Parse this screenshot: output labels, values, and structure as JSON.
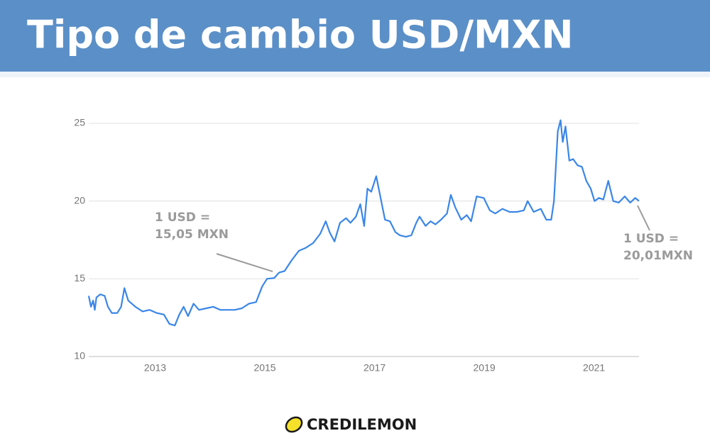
{
  "chart_data": {
    "type": "line",
    "title": "Tipo de cambio USD/MXN",
    "x": [
      2011.79,
      2011.83,
      2011.87,
      2011.9,
      2011.93,
      2012.0,
      2012.08,
      2012.14,
      2012.21,
      2012.31,
      2012.38,
      2012.44,
      2012.51,
      2012.64,
      2012.77,
      2012.9,
      2013.03,
      2013.16,
      2013.26,
      2013.36,
      2013.44,
      2013.52,
      2013.6,
      2013.7,
      2013.8,
      2013.93,
      2014.06,
      2014.19,
      2014.32,
      2014.45,
      2014.58,
      2014.71,
      2014.84,
      2014.95,
      2015.04,
      2015.17,
      2015.26,
      2015.36,
      2015.49,
      2015.62,
      2015.75,
      2015.88,
      2016.01,
      2016.11,
      2016.18,
      2016.27,
      2016.37,
      2016.48,
      2016.56,
      2016.66,
      2016.74,
      2016.81,
      2016.87,
      2016.94,
      2017.03,
      2017.11,
      2017.19,
      2017.28,
      2017.38,
      2017.46,
      2017.57,
      2017.67,
      2017.76,
      2017.82,
      2017.93,
      2018.02,
      2018.11,
      2018.21,
      2018.32,
      2018.39,
      2018.47,
      2018.58,
      2018.68,
      2018.76,
      2018.86,
      2018.99,
      2019.1,
      2019.2,
      2019.33,
      2019.46,
      2019.59,
      2019.72,
      2019.79,
      2019.9,
      2020.03,
      2020.13,
      2020.22,
      2020.27,
      2020.34,
      2020.39,
      2020.43,
      2020.48,
      2020.55,
      2020.62,
      2020.7,
      2020.78,
      2020.86,
      2020.94,
      2021.01,
      2021.09,
      2021.17,
      2021.26,
      2021.35,
      2021.45,
      2021.56,
      2021.66,
      2021.75,
      2021.82
    ],
    "values": [
      13.9,
      13.2,
      13.6,
      13.0,
      13.8,
      14.0,
      13.9,
      13.2,
      12.8,
      12.8,
      13.2,
      14.4,
      13.6,
      13.2,
      12.9,
      13.0,
      12.8,
      12.7,
      12.1,
      12.0,
      12.7,
      13.2,
      12.6,
      13.4,
      13.0,
      13.1,
      13.2,
      13.0,
      13.0,
      13.0,
      13.1,
      13.4,
      13.5,
      14.5,
      15.0,
      15.05,
      15.4,
      15.5,
      16.2,
      16.8,
      17.0,
      17.3,
      17.9,
      18.7,
      18.0,
      17.4,
      18.6,
      18.9,
      18.6,
      19.0,
      19.8,
      18.4,
      20.8,
      20.6,
      21.6,
      20.2,
      18.8,
      18.7,
      18.0,
      17.8,
      17.7,
      17.8,
      18.6,
      19.0,
      18.4,
      18.7,
      18.5,
      18.8,
      19.2,
      20.4,
      19.6,
      18.8,
      19.1,
      18.7,
      20.3,
      20.2,
      19.4,
      19.2,
      19.5,
      19.3,
      19.3,
      19.4,
      20.0,
      19.3,
      19.5,
      18.8,
      18.8,
      20.0,
      24.5,
      25.2,
      23.8,
      24.8,
      22.6,
      22.7,
      22.3,
      22.2,
      21.3,
      20.8,
      20.0,
      20.2,
      20.1,
      21.3,
      20.0,
      19.9,
      20.3,
      19.9,
      20.2,
      20.01
    ],
    "color": "#3a86e8",
    "xlim": [
      2011.79,
      2021.82
    ],
    "xticks": [
      2013,
      2015,
      2017,
      2019,
      2021
    ],
    "ylim": [
      10,
      25
    ],
    "yticks": [
      10,
      15,
      20,
      25
    ],
    "grid": true,
    "annotations": [
      {
        "lines": [
          "1 USD =",
          "15,05 MXN"
        ]
      },
      {
        "lines": [
          "1 USD =",
          "20,01MXN"
        ]
      }
    ],
    "brand": "CREDILEMON"
  }
}
